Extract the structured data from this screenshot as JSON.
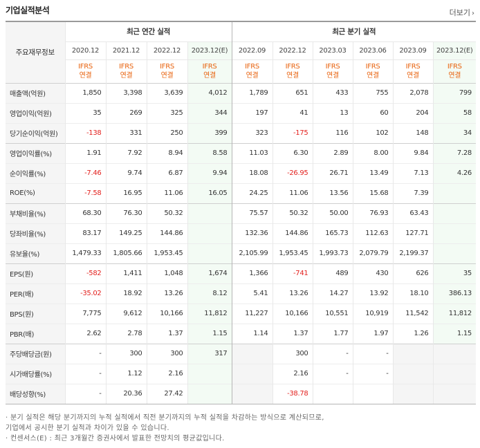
{
  "title": "기업실적분석",
  "more_label": "더보기",
  "header": {
    "row_label": "주요재무정보",
    "annual_group": "최근 연간 실적",
    "quarter_group": "최근 분기 실적",
    "periods": [
      "2020.12",
      "2021.12",
      "2022.12",
      "2023.12(E)",
      "2022.09",
      "2022.12",
      "2023.03",
      "2023.06",
      "2023.09",
      "2023.12(E)"
    ],
    "ifrs": "IFRS",
    "consolidated": "연결"
  },
  "rows": [
    {
      "label": "매출액(억원)",
      "values": [
        "1,850",
        "3,398",
        "3,639",
        "4,012",
        "1,789",
        "651",
        "433",
        "755",
        "2,078",
        "799"
      ]
    },
    {
      "label": "영업이익(억원)",
      "values": [
        "35",
        "269",
        "325",
        "344",
        "197",
        "41",
        "13",
        "60",
        "204",
        "58"
      ]
    },
    {
      "label": "당기순이익(억원)",
      "values": [
        "-138",
        "331",
        "250",
        "399",
        "323",
        "-175",
        "116",
        "102",
        "148",
        "34"
      ]
    },
    {
      "label": "영업이익률(%)",
      "values": [
        "1.91",
        "7.92",
        "8.94",
        "8.58",
        "11.03",
        "6.30",
        "2.89",
        "8.00",
        "9.84",
        "7.28"
      ]
    },
    {
      "label": "순이익률(%)",
      "values": [
        "-7.46",
        "9.74",
        "6.87",
        "9.94",
        "18.08",
        "-26.95",
        "26.71",
        "13.49",
        "7.13",
        "4.26"
      ]
    },
    {
      "label": "ROE(%)",
      "values": [
        "-7.58",
        "16.95",
        "11.06",
        "16.05",
        "24.25",
        "11.06",
        "13.56",
        "15.68",
        "7.39",
        ""
      ]
    },
    {
      "label": "부채비율(%)",
      "values": [
        "68.30",
        "76.30",
        "50.32",
        "",
        "75.57",
        "50.32",
        "50.00",
        "76.93",
        "63.43",
        ""
      ]
    },
    {
      "label": "당좌비율(%)",
      "values": [
        "83.17",
        "149.25",
        "144.86",
        "",
        "132.36",
        "144.86",
        "165.73",
        "112.63",
        "127.71",
        ""
      ]
    },
    {
      "label": "유보율(%)",
      "values": [
        "1,479.33",
        "1,805.66",
        "1,953.45",
        "",
        "2,105.99",
        "1,953.45",
        "1,993.73",
        "2,079.79",
        "2,199.37",
        ""
      ]
    },
    {
      "label": "EPS(원)",
      "values": [
        "-582",
        "1,411",
        "1,048",
        "1,674",
        "1,366",
        "-741",
        "489",
        "430",
        "626",
        "35"
      ]
    },
    {
      "label": "PER(배)",
      "values": [
        "-35.02",
        "18.92",
        "13.26",
        "8.12",
        "5.41",
        "13.26",
        "14.27",
        "13.92",
        "18.10",
        "386.13"
      ]
    },
    {
      "label": "BPS(원)",
      "values": [
        "7,775",
        "9,612",
        "10,166",
        "11,812",
        "11,227",
        "10,166",
        "10,551",
        "10,919",
        "11,542",
        "11,812"
      ]
    },
    {
      "label": "PBR(배)",
      "values": [
        "2.62",
        "2.78",
        "1.37",
        "1.15",
        "1.14",
        "1.37",
        "1.77",
        "1.97",
        "1.26",
        "1.15"
      ]
    },
    {
      "label": "주당배당금(원)",
      "values": [
        "-",
        "300",
        "300",
        "317",
        "",
        "300",
        "-",
        "-",
        "",
        ""
      ]
    },
    {
      "label": "시가배당률(%)",
      "values": [
        "-",
        "1.12",
        "2.16",
        "",
        "",
        "2.16",
        "-",
        "-",
        "",
        ""
      ]
    },
    {
      "label": "배당성향(%)",
      "values": [
        "-",
        "20.36",
        "27.42",
        "",
        "",
        "-38.78",
        "",
        "",
        "",
        ""
      ]
    }
  ],
  "notes": [
    "· 분기 실적은 해당 분기까지의 누적 실적에서 직전 분기까지의 누적 실적을 차감하는 방식으로 계산되므로,",
    "   기업에서 공시한 분기 실적과 차이가 있을 수 있습니다.",
    "· 컨센서스(E) : 최근 3개월간 증권사에서 발표한 전망치의 평균값입니다."
  ]
}
